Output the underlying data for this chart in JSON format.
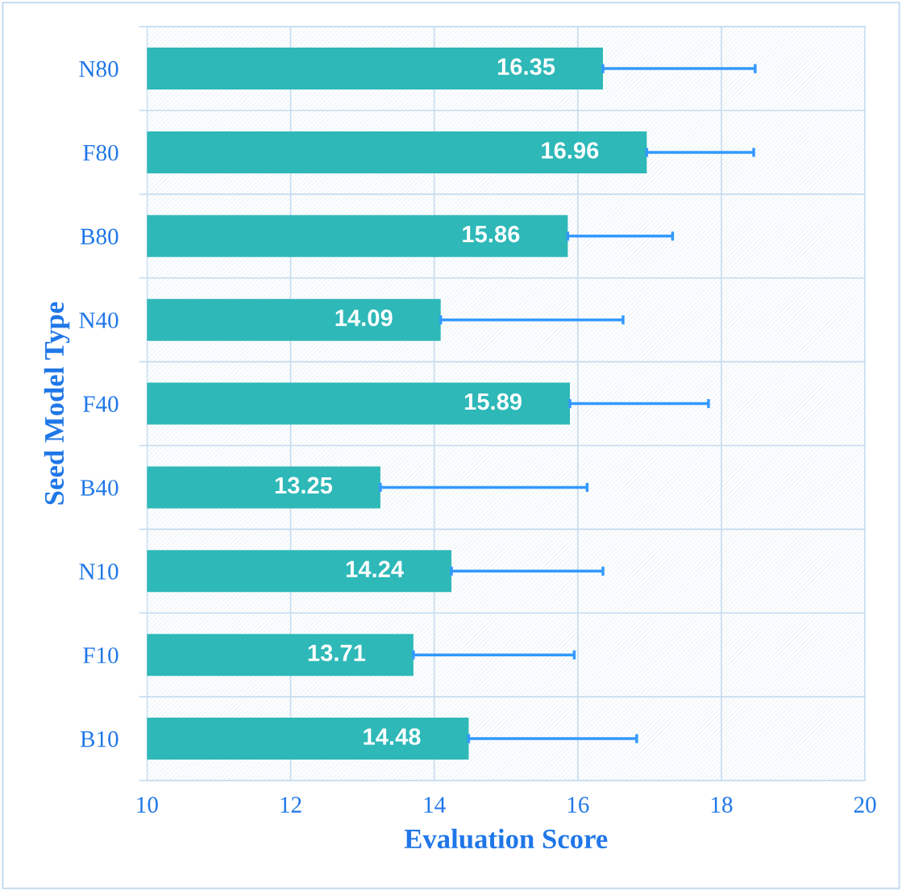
{
  "chart_data": {
    "type": "bar",
    "orientation": "horizontal",
    "xlabel": "Evaluation Score",
    "ylabel": "Seed Model Type",
    "categories": [
      "N80",
      "F80",
      "B80",
      "N40",
      "F40",
      "B40",
      "N10",
      "F10",
      "B10"
    ],
    "values": [
      16.35,
      16.96,
      15.86,
      14.09,
      15.89,
      13.25,
      14.24,
      13.71,
      14.48
    ],
    "errors": [
      [
        16.35,
        18.47
      ],
      [
        16.96,
        18.45
      ],
      [
        15.86,
        17.32
      ],
      [
        14.09,
        16.63
      ],
      [
        15.89,
        17.82
      ],
      [
        13.25,
        16.13
      ],
      [
        14.24,
        16.35
      ],
      [
        13.71,
        15.95
      ],
      [
        14.48,
        16.82
      ]
    ],
    "color": "#2eb8b8",
    "xlim": [
      10,
      20
    ],
    "xticks": [
      10,
      12,
      14,
      16,
      18,
      20
    ],
    "data_labels": true,
    "grid": true,
    "legend": false
  }
}
